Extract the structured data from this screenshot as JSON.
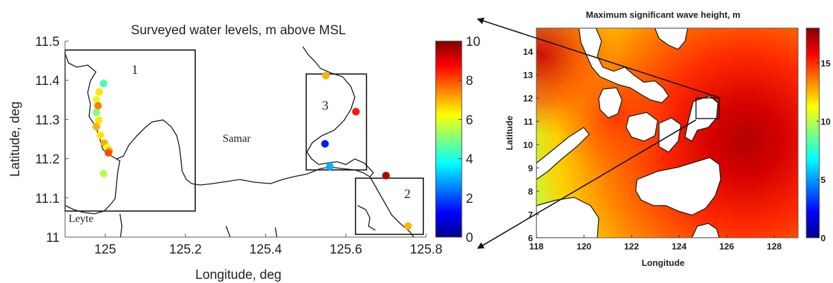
{
  "chart_data": [
    {
      "type": "scatter",
      "title": "Surveyed water levels, m above MSL",
      "xlabel": "Longitude, deg",
      "ylabel": "Latitude, deg",
      "xlim": [
        124.9,
        125.8
      ],
      "ylim": [
        11.0,
        11.5
      ],
      "xticks": [
        "125",
        "125.2",
        "125.4",
        "125.6",
        "125.8"
      ],
      "yticks": [
        "11",
        "11.1",
        "11.2",
        "11.3",
        "11.4",
        "11.5"
      ],
      "colorbar": {
        "range": [
          0,
          10
        ],
        "ticks": [
          "0",
          "2",
          "4",
          "6",
          "8",
          "10"
        ],
        "colormap": "jet"
      },
      "region_labels": [
        "Samar",
        "Leyte"
      ],
      "box_labels": [
        "1",
        "2",
        "3"
      ],
      "points": [
        {
          "x": 124.996,
          "y": 11.392,
          "v": 4.5
        },
        {
          "x": 124.985,
          "y": 11.37,
          "v": 6.5
        },
        {
          "x": 124.978,
          "y": 11.35,
          "v": 6.0
        },
        {
          "x": 124.982,
          "y": 11.335,
          "v": 7.5
        },
        {
          "x": 124.978,
          "y": 11.318,
          "v": 5.0
        },
        {
          "x": 124.984,
          "y": 11.298,
          "v": 6.5
        },
        {
          "x": 124.978,
          "y": 11.282,
          "v": 7.0
        },
        {
          "x": 124.988,
          "y": 11.26,
          "v": 6.5
        },
        {
          "x": 124.998,
          "y": 11.24,
          "v": 7.0
        },
        {
          "x": 125.005,
          "y": 11.228,
          "v": 6.0
        },
        {
          "x": 125.01,
          "y": 11.22,
          "v": 7.0
        },
        {
          "x": 125.008,
          "y": 11.215,
          "v": 8.0
        },
        {
          "x": 124.996,
          "y": 11.162,
          "v": 5.5
        },
        {
          "x": 125.55,
          "y": 11.412,
          "v": 7.0
        },
        {
          "x": 125.625,
          "y": 11.32,
          "v": 8.5
        },
        {
          "x": 125.548,
          "y": 11.238,
          "v": 1.5
        },
        {
          "x": 125.56,
          "y": 11.18,
          "v": 3.0
        },
        {
          "x": 125.7,
          "y": 11.157,
          "v": 9.5
        },
        {
          "x": 125.755,
          "y": 11.028,
          "v": 7.0
        }
      ]
    },
    {
      "type": "heatmap",
      "title": "Maximum significant wave height, m",
      "xlabel": "Longitude",
      "ylabel": "Latitude",
      "xlim": [
        118,
        129
      ],
      "ylim": [
        6,
        15
      ],
      "xticks": [
        "118",
        "120",
        "122",
        "124",
        "126",
        "128"
      ],
      "yticks": [
        "6",
        "7",
        "8",
        "9",
        "10",
        "11",
        "12",
        "13",
        "14"
      ],
      "colorbar": {
        "range": [
          0,
          18
        ],
        "ticks": [
          "0",
          "5",
          "10",
          "15"
        ],
        "colormap": "jet"
      },
      "max_center": {
        "x": 126.5,
        "y": 11.0
      },
      "zoom_box": {
        "xlim": [
          124.9,
          125.8
        ],
        "ylim": [
          11.0,
          11.5
        ]
      }
    }
  ]
}
